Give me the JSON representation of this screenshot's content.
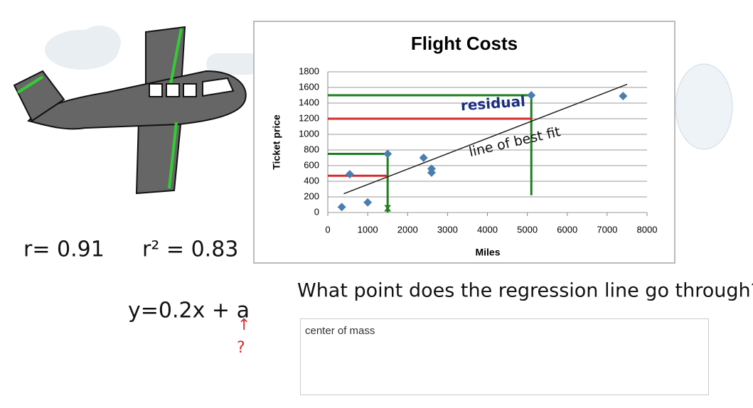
{
  "chart_data": {
    "type": "scatter",
    "title": "Flight Costs",
    "x_label": "Miles",
    "y_label": "Ticket price",
    "x": [
      350,
      550,
      1000,
      1500,
      2400,
      2600,
      2600,
      5100,
      7400
    ],
    "values": [
      70,
      490,
      130,
      750,
      700,
      560,
      510,
      1500,
      1490
    ],
    "color": "#4a7eb0",
    "xlim": [
      0,
      8000
    ],
    "xticks": [
      0,
      1000,
      2000,
      3000,
      4000,
      5000,
      6000,
      7000,
      8000
    ],
    "ylim": [
      0,
      1800
    ],
    "yticks": [
      0,
      200,
      400,
      600,
      800,
      1000,
      1200,
      1400,
      1600,
      1800
    ],
    "grid": true,
    "trend_line": {
      "x": [
        400,
        7500
      ],
      "y": [
        240,
        1640
      ],
      "color": "#222222"
    },
    "guides": [
      {
        "color": "#1e7d1e",
        "x": [
          0,
          5100
        ],
        "y": [
          1500,
          1500
        ]
      },
      {
        "color": "#1e7d1e",
        "x": [
          5100,
          5100
        ],
        "y": [
          1500,
          220
        ]
      },
      {
        "color": "#d62c2c",
        "x": [
          0,
          5100
        ],
        "y": [
          1200,
          1200
        ]
      },
      {
        "color": "#1e7d1e",
        "x": [
          0,
          1500
        ],
        "y": [
          750,
          750
        ]
      },
      {
        "color": "#1e7d1e",
        "x": [
          1500,
          1500
        ],
        "y": [
          750,
          0
        ]
      },
      {
        "color": "#d62c2c",
        "x": [
          0,
          1500
        ],
        "y": [
          470,
          470
        ]
      }
    ],
    "annotations": [
      "residual",
      "line of best fit",
      "x"
    ]
  },
  "notes": {
    "r": "r= 0.91",
    "r_squared": "r² = 0.83",
    "equation": "y=0.2x + a",
    "arrow": "↑",
    "question_mark": "?"
  },
  "question": "What point does the regression line go through?",
  "answer": "center of mass"
}
